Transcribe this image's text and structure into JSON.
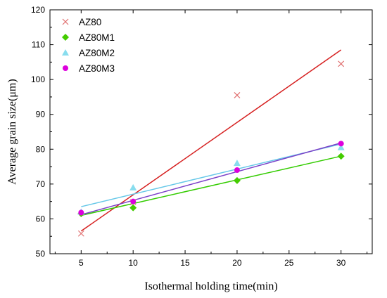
{
  "chart_data": {
    "type": "scatter",
    "xlabel": "Isothermal holding time(min)",
    "ylabel": "Average grain size(μm)",
    "xlim": [
      2,
      33
    ],
    "ylim": [
      50,
      120
    ],
    "xticks": [
      5,
      10,
      15,
      20,
      25,
      30
    ],
    "yticks": [
      50,
      60,
      70,
      80,
      90,
      100,
      110,
      120
    ],
    "grid": false,
    "legend_position": "top-left",
    "series": [
      {
        "name": "AZ80",
        "marker": "x",
        "color": "#e07070",
        "fit_color": "#d62020",
        "x": [
          5,
          10,
          20,
          30
        ],
        "y": [
          55.8,
          64.8,
          95.5,
          104.5
        ],
        "fit": [
          [
            5,
            56.5
          ],
          [
            30,
            108.5
          ]
        ]
      },
      {
        "name": "AZ80M1",
        "marker": "diamond",
        "color": "#44cc00",
        "fit_color": "#33cc00",
        "x": [
          5,
          10,
          20,
          30
        ],
        "y": [
          61.5,
          63.2,
          71.0,
          78.0
        ],
        "fit": [
          [
            5,
            61.0
          ],
          [
            30,
            78.0
          ]
        ]
      },
      {
        "name": "AZ80M2",
        "marker": "triangle",
        "color": "#88ddee",
        "fit_color": "#66c8e8",
        "x": [
          5,
          10,
          20,
          30
        ],
        "y": [
          62.0,
          69.0,
          76.0,
          80.5
        ],
        "fit": [
          [
            5,
            63.5
          ],
          [
            30,
            81.5
          ]
        ]
      },
      {
        "name": "AZ80M3",
        "marker": "circle",
        "color": "#dd00dd",
        "fit_color": "#7a40c8",
        "x": [
          5,
          10,
          20,
          30
        ],
        "y": [
          61.8,
          65.0,
          74.0,
          81.6
        ],
        "fit": [
          [
            5,
            61.2
          ],
          [
            30,
            81.8
          ]
        ]
      }
    ]
  }
}
